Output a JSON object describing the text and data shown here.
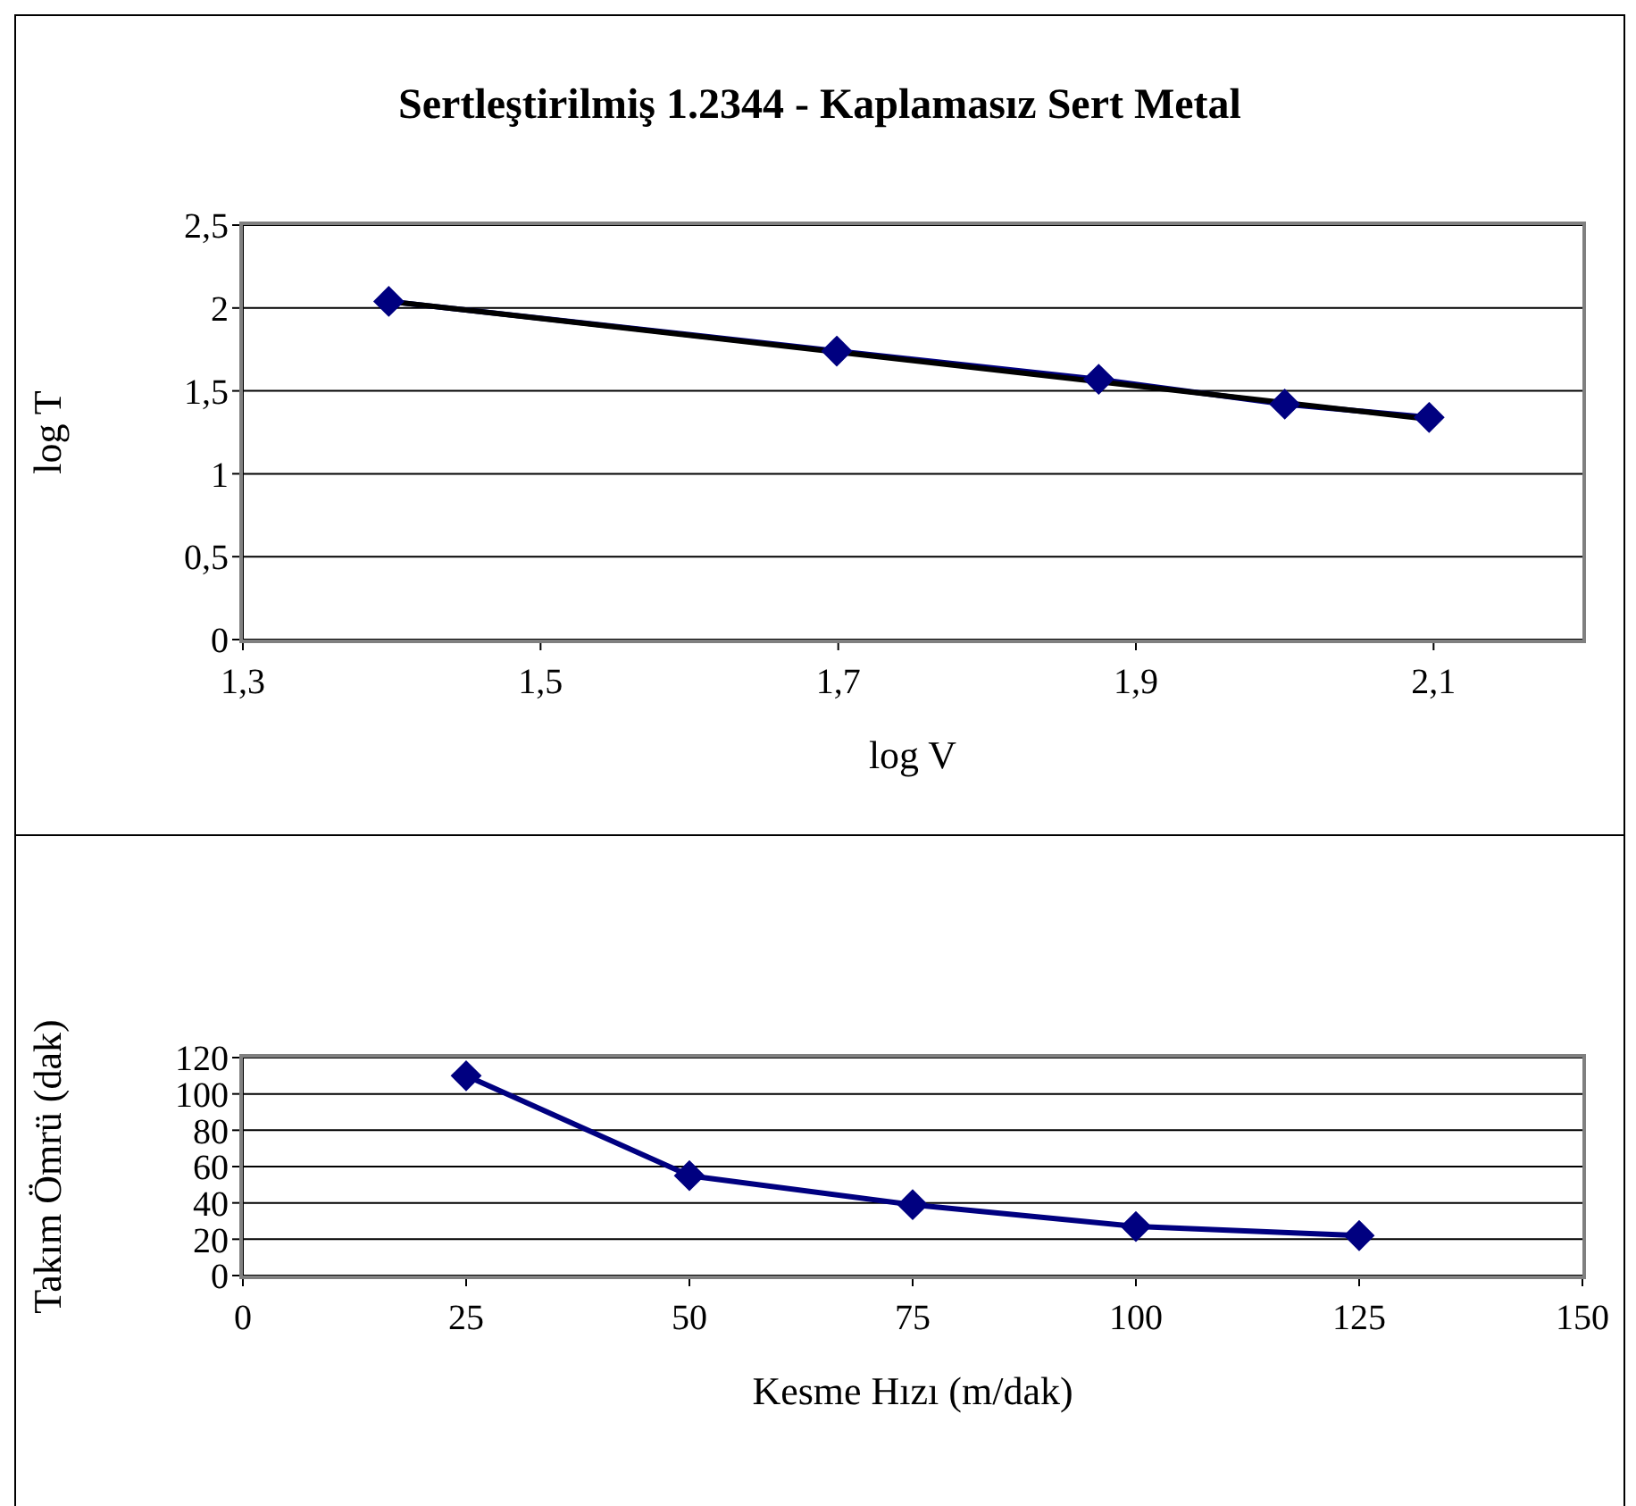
{
  "chart_data": [
    {
      "type": "line",
      "title": "Sertleştirilmiş 1.2344 - Kaplamasız Sert Metal",
      "xlabel": "log V",
      "ylabel": "log T",
      "xlim": [
        1.3,
        2.2
      ],
      "xticks": [
        {
          "value": 1.3,
          "label": "1,3"
        },
        {
          "value": 1.5,
          "label": "1,5"
        },
        {
          "value": 1.7,
          "label": "1,7"
        },
        {
          "value": 1.9,
          "label": "1,9"
        },
        {
          "value": 2.1,
          "label": "2,1"
        }
      ],
      "ylim": [
        0,
        2.5
      ],
      "yticks": [
        0,
        {
          "value": 0.5,
          "label": "0,5"
        },
        1,
        {
          "value": 1.5,
          "label": "1,5"
        },
        2,
        {
          "value": 2.5,
          "label": "2,5"
        }
      ],
      "grid": "y",
      "marker": "diamond",
      "series": [
        {
          "color": "#000080",
          "x": [
            1.398,
            1.699,
            1.875,
            2.0,
            2.097
          ],
          "values": [
            2.04,
            1.74,
            1.57,
            1.42,
            1.34
          ]
        },
        {
          "type": "line",
          "marker": "none",
          "color": "#000000",
          "x": [
            1.398,
            2.097
          ],
          "values": [
            2.04,
            1.33
          ]
        }
      ]
    },
    {
      "type": "line",
      "xlabel": "Kesme Hızı (m/dak)",
      "ylabel": "Takım Ömrü (dak)",
      "xlim": [
        0,
        150
      ],
      "xticks": [
        0,
        25,
        50,
        75,
        100,
        125,
        150
      ],
      "ylim": [
        0,
        120
      ],
      "yticks": [
        0,
        20,
        40,
        60,
        80,
        100,
        120
      ],
      "grid": "y",
      "marker": "diamond",
      "series": [
        {
          "color": "#000080",
          "x": [
            25,
            50,
            75,
            100,
            125
          ],
          "values": [
            110,
            55,
            39,
            27,
            22
          ]
        }
      ]
    }
  ]
}
